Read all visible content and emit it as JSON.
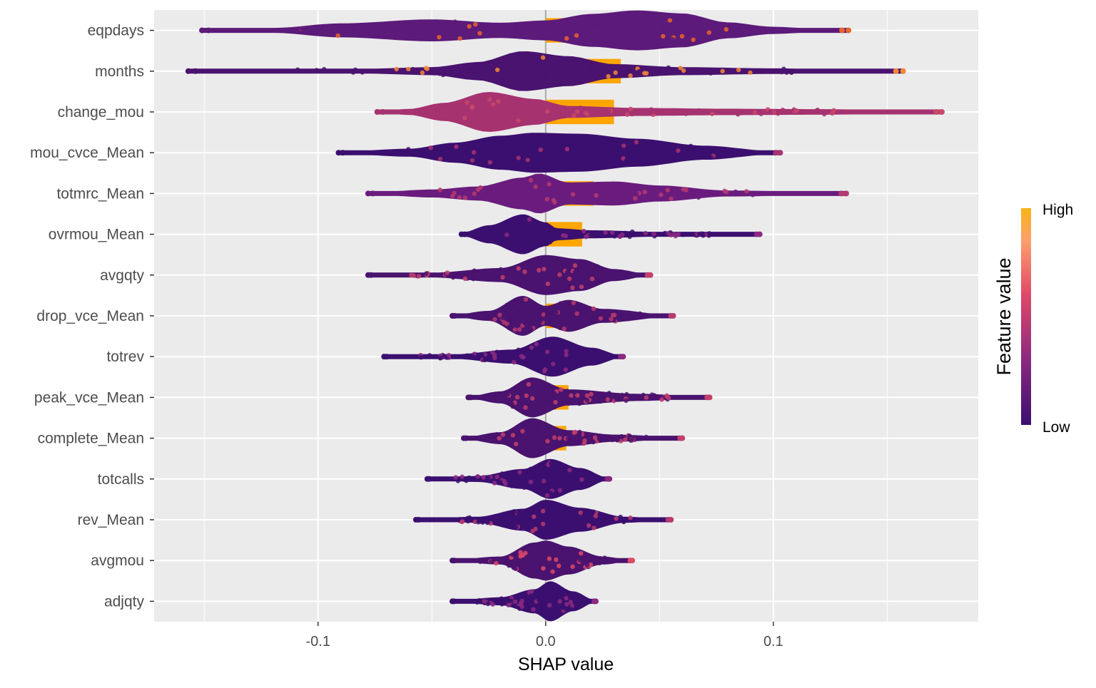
{
  "chart_data": {
    "type": "scatter",
    "subtype": "shap-summary-violin",
    "title": "",
    "xlabel": "SHAP value",
    "ylabel": "",
    "xlim": [
      -0.172,
      0.19
    ],
    "xticks": [
      -0.1,
      0.0,
      0.1
    ],
    "xtick_labels": [
      "-0.1",
      "0.0",
      "0.1"
    ],
    "grid": true,
    "zero_line": true,
    "legend": {
      "title": "Feature value",
      "high_label": "High",
      "low_label": "Low",
      "placement": "right",
      "colors": [
        "#3b0f70",
        "#8c2981",
        "#de4968",
        "#fe9f6d",
        "#f8b416"
      ]
    },
    "mean_bar_color": "#ffa500",
    "features": [
      {
        "name": "eqpdays",
        "mean_abs_shap": 0.065,
        "min": -0.151,
        "max": 0.133,
        "peak": 0.04,
        "color_low": "#5c1a7a",
        "color_high": "#e8652c",
        "density": [
          [
            -0.151,
            0.04
          ],
          [
            -0.12,
            0.12
          ],
          [
            -0.09,
            0.35
          ],
          [
            -0.05,
            0.55
          ],
          [
            -0.02,
            0.38
          ],
          [
            0.0,
            0.5
          ],
          [
            0.02,
            0.82
          ],
          [
            0.04,
            1.0
          ],
          [
            0.06,
            0.85
          ],
          [
            0.08,
            0.4
          ],
          [
            0.1,
            0.18
          ],
          [
            0.12,
            0.08
          ],
          [
            0.133,
            0.04
          ]
        ]
      },
      {
        "name": "months",
        "mean_abs_shap": 0.033,
        "min": -0.157,
        "max": 0.157,
        "peak": -0.01,
        "color_low": "#4a136f",
        "color_high": "#f0883a",
        "density": [
          [
            -0.157,
            0.04
          ],
          [
            -0.13,
            0.1
          ],
          [
            -0.08,
            0.12
          ],
          [
            -0.05,
            0.2
          ],
          [
            -0.03,
            0.45
          ],
          [
            -0.01,
            1.0
          ],
          [
            0.01,
            0.75
          ],
          [
            0.03,
            0.35
          ],
          [
            0.06,
            0.2
          ],
          [
            0.1,
            0.14
          ],
          [
            0.138,
            0.06
          ],
          [
            0.157,
            0.03
          ]
        ]
      },
      {
        "name": "change_mou",
        "mean_abs_shap": 0.03,
        "min": -0.074,
        "max": 0.174,
        "peak": -0.025,
        "color_low": "#a63270",
        "color_high": "#c8486a",
        "density": [
          [
            -0.074,
            0.06
          ],
          [
            -0.06,
            0.15
          ],
          [
            -0.045,
            0.45
          ],
          [
            -0.025,
            1.0
          ],
          [
            -0.005,
            0.65
          ],
          [
            0.01,
            0.3
          ],
          [
            0.04,
            0.2
          ],
          [
            0.08,
            0.16
          ],
          [
            0.12,
            0.14
          ],
          [
            0.16,
            0.08
          ],
          [
            0.174,
            0.04
          ]
        ]
      },
      {
        "name": "mou_cvce_Mean",
        "mean_abs_shap": 0.015,
        "min": -0.091,
        "max": 0.103,
        "peak": -0.01,
        "color_low": "#3b0f70",
        "color_high": "#a63270",
        "density": [
          [
            -0.091,
            0.05
          ],
          [
            -0.06,
            0.2
          ],
          [
            -0.04,
            0.5
          ],
          [
            -0.02,
            0.85
          ],
          [
            -0.005,
            1.0
          ],
          [
            0.015,
            0.95
          ],
          [
            0.04,
            0.7
          ],
          [
            0.07,
            0.35
          ],
          [
            0.099,
            0.1
          ],
          [
            0.103,
            0.05
          ]
        ]
      },
      {
        "name": "totmrc_Mean",
        "mean_abs_shap": 0.021,
        "min": -0.078,
        "max": 0.132,
        "peak": -0.003,
        "color_low": "#6a1c7e",
        "color_high": "#b53a6e",
        "density": [
          [
            -0.078,
            0.05
          ],
          [
            -0.05,
            0.2
          ],
          [
            -0.03,
            0.35
          ],
          [
            -0.01,
            0.8
          ],
          [
            -0.003,
            1.0
          ],
          [
            0.01,
            0.55
          ],
          [
            0.03,
            0.6
          ],
          [
            0.05,
            0.4
          ],
          [
            0.08,
            0.15
          ],
          [
            0.132,
            0.05
          ]
        ]
      },
      {
        "name": "ovrmou_Mean",
        "mean_abs_shap": 0.016,
        "min": -0.037,
        "max": 0.094,
        "peak": -0.01,
        "color_low": "#3b0f70",
        "color_high": "#8c2981",
        "density": [
          [
            -0.037,
            0.08
          ],
          [
            -0.025,
            0.45
          ],
          [
            -0.01,
            1.0
          ],
          [
            0.0,
            0.6
          ],
          [
            0.005,
            0.3
          ],
          [
            0.02,
            0.2
          ],
          [
            0.05,
            0.12
          ],
          [
            0.094,
            0.05
          ]
        ]
      },
      {
        "name": "avgqty",
        "mean_abs_shap": 0.0,
        "min": -0.078,
        "max": 0.046,
        "peak": 0.0,
        "color_low": "#4a136f",
        "color_high": "#c2406c",
        "density": [
          [
            -0.078,
            0.04
          ],
          [
            -0.05,
            0.12
          ],
          [
            -0.02,
            0.35
          ],
          [
            0.0,
            1.0
          ],
          [
            0.015,
            0.8
          ],
          [
            0.03,
            0.3
          ],
          [
            0.046,
            0.05
          ]
        ]
      },
      {
        "name": "drop_vce_Mean",
        "mean_abs_shap": 0.004,
        "min": -0.041,
        "max": 0.056,
        "peak": -0.01,
        "color_low": "#4a136f",
        "color_high": "#b53a6e",
        "density": [
          [
            -0.041,
            0.05
          ],
          [
            -0.025,
            0.25
          ],
          [
            -0.01,
            1.0
          ],
          [
            0.0,
            0.5
          ],
          [
            0.01,
            0.8
          ],
          [
            0.025,
            0.35
          ],
          [
            0.056,
            0.05
          ]
        ]
      },
      {
        "name": "totrev",
        "mean_abs_shap": 0.0,
        "min": -0.071,
        "max": 0.034,
        "peak": 0.003,
        "color_low": "#3b0f70",
        "color_high": "#8c2981",
        "density": [
          [
            -0.071,
            0.05
          ],
          [
            -0.04,
            0.12
          ],
          [
            -0.015,
            0.35
          ],
          [
            0.003,
            1.0
          ],
          [
            0.02,
            0.45
          ],
          [
            0.034,
            0.05
          ]
        ]
      },
      {
        "name": "peak_vce_Mean",
        "mean_abs_shap": 0.01,
        "min": -0.034,
        "max": 0.072,
        "peak": -0.006,
        "color_low": "#4a136f",
        "color_high": "#c2406c",
        "density": [
          [
            -0.034,
            0.05
          ],
          [
            -0.02,
            0.3
          ],
          [
            -0.006,
            1.0
          ],
          [
            0.01,
            0.4
          ],
          [
            0.04,
            0.18
          ],
          [
            0.072,
            0.05
          ]
        ]
      },
      {
        "name": "complete_Mean",
        "mean_abs_shap": 0.009,
        "min": -0.036,
        "max": 0.06,
        "peak": -0.006,
        "color_low": "#4a136f",
        "color_high": "#c2406c",
        "density": [
          [
            -0.036,
            0.05
          ],
          [
            -0.02,
            0.3
          ],
          [
            -0.006,
            1.0
          ],
          [
            0.01,
            0.4
          ],
          [
            0.03,
            0.18
          ],
          [
            0.06,
            0.05
          ]
        ]
      },
      {
        "name": "totcalls",
        "mean_abs_shap": 0.0,
        "min": -0.052,
        "max": 0.028,
        "peak": 0.002,
        "color_low": "#3b0f70",
        "color_high": "#8c2981",
        "density": [
          [
            -0.052,
            0.05
          ],
          [
            -0.03,
            0.15
          ],
          [
            -0.01,
            0.5
          ],
          [
            0.002,
            1.0
          ],
          [
            0.015,
            0.55
          ],
          [
            0.028,
            0.05
          ]
        ]
      },
      {
        "name": "rev_Mean",
        "mean_abs_shap": 0.0,
        "min": -0.057,
        "max": 0.055,
        "peak": 0.0,
        "color_low": "#3b0f70",
        "color_high": "#b53a6e",
        "density": [
          [
            -0.057,
            0.05
          ],
          [
            -0.03,
            0.15
          ],
          [
            -0.01,
            0.55
          ],
          [
            0.0,
            1.0
          ],
          [
            0.015,
            0.6
          ],
          [
            0.035,
            0.15
          ],
          [
            0.055,
            0.04
          ]
        ]
      },
      {
        "name": "avgmou",
        "mean_abs_shap": 0.0,
        "min": -0.041,
        "max": 0.038,
        "peak": 0.0,
        "color_low": "#4a136f",
        "color_high": "#de4968",
        "density": [
          [
            -0.041,
            0.05
          ],
          [
            -0.02,
            0.2
          ],
          [
            -0.005,
            0.9
          ],
          [
            0.0,
            1.0
          ],
          [
            0.01,
            0.7
          ],
          [
            0.025,
            0.2
          ],
          [
            0.038,
            0.04
          ]
        ]
      },
      {
        "name": "adjqty",
        "mean_abs_shap": 0.0,
        "min": -0.041,
        "max": 0.022,
        "peak": 0.002,
        "color_low": "#3b0f70",
        "color_high": "#8c2981",
        "density": [
          [
            -0.041,
            0.05
          ],
          [
            -0.02,
            0.2
          ],
          [
            -0.005,
            0.6
          ],
          [
            0.002,
            1.0
          ],
          [
            0.012,
            0.5
          ],
          [
            0.022,
            0.05
          ]
        ]
      }
    ]
  }
}
